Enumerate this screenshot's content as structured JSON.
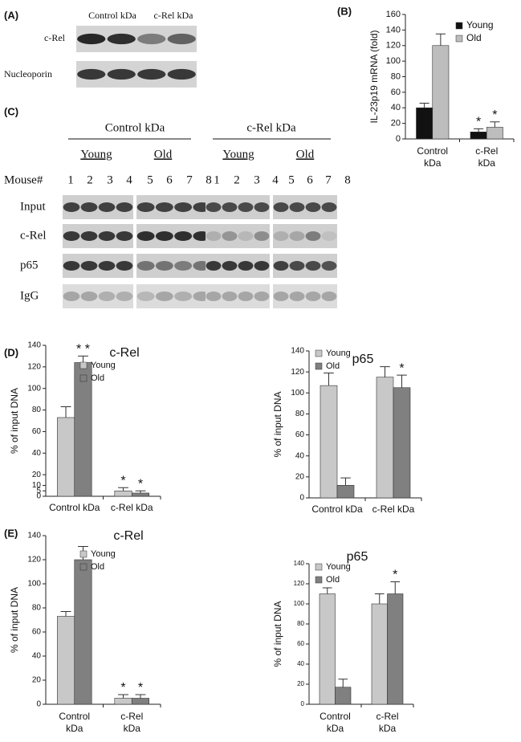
{
  "blots": {
    "A": {
      "panel": "(A)",
      "columns": [
        "Control kDa",
        "c-Rel kDa"
      ],
      "rows": [
        "c-Rel",
        "Nucleoporin"
      ]
    },
    "C": {
      "panel": "(C)",
      "groups": [
        "Control kDa",
        "c-Rel kDa"
      ],
      "subgroups": [
        "Young",
        "Old",
        "Young",
        "Old"
      ],
      "mouse_label": "Mouse#",
      "mice": [
        "1",
        "2",
        "3",
        "4",
        "5",
        "6",
        "7",
        "8"
      ],
      "rows": [
        "Input",
        "c-Rel",
        "p65",
        "IgG"
      ]
    }
  },
  "chart_data": [
    {
      "type": "bar",
      "panel": "(B)",
      "ylabel": "IL-23p19 mRNA (fold)",
      "categories": [
        [
          "Control",
          "kDa"
        ],
        [
          "c-Rel",
          "kDa"
        ]
      ],
      "series": [
        {
          "name": "Young",
          "color": "#111111",
          "values": [
            40,
            9
          ],
          "errors": [
            6,
            4
          ],
          "significance": [
            null,
            "*"
          ]
        },
        {
          "name": "Old",
          "color": "#bdbdbd",
          "values": [
            120,
            15
          ],
          "errors": [
            15,
            7
          ],
          "significance": [
            null,
            "*"
          ]
        }
      ],
      "ylim": [
        0,
        160
      ],
      "yticks": [
        0,
        20,
        40,
        60,
        80,
        100,
        120,
        140,
        160
      ],
      "legend": "top-right"
    },
    {
      "type": "bar",
      "panel": "(D)",
      "title": "c-Rel",
      "ylabel": "% of input DNA",
      "categories": [
        "Control kDa",
        "c-Rel kDa"
      ],
      "series": [
        {
          "name": "Young",
          "color": "#c8c8c8",
          "values": [
            73,
            5
          ],
          "errors": [
            10,
            3
          ],
          "significance": [
            null,
            "*"
          ]
        },
        {
          "name": "Old",
          "color": "#808080",
          "values": [
            124,
            3
          ],
          "errors": [
            6,
            2
          ],
          "significance": [
            "* *",
            "*"
          ]
        }
      ],
      "ylim": [
        0,
        140
      ],
      "yticks": [
        0,
        5,
        10,
        20,
        40,
        60,
        80,
        100,
        120,
        140
      ],
      "legend": "top-center"
    },
    {
      "type": "bar",
      "title": "p65",
      "ylabel": "% of input DNA",
      "categories": [
        "Control kDa",
        "c-Rel kDa"
      ],
      "series": [
        {
          "name": "Young",
          "color": "#c8c8c8",
          "values": [
            107,
            115
          ],
          "errors": [
            12,
            10
          ],
          "significance": [
            null,
            null
          ]
        },
        {
          "name": "Old",
          "color": "#808080",
          "values": [
            12,
            105
          ],
          "errors": [
            7,
            12
          ],
          "significance": [
            null,
            "*"
          ]
        }
      ],
      "ylim": [
        0,
        140
      ],
      "yticks": [
        0,
        20,
        40,
        60,
        80,
        100,
        120,
        140
      ],
      "legend": "top-left"
    },
    {
      "type": "bar",
      "panel": "(E)",
      "title": "c-Rel",
      "ylabel": "% of input DNA",
      "categories": [
        [
          "Control",
          "kDa"
        ],
        [
          "c-Rel",
          "kDa"
        ]
      ],
      "series": [
        {
          "name": "Young",
          "color": "#c8c8c8",
          "values": [
            73,
            5
          ],
          "errors": [
            4,
            3
          ],
          "significance": [
            null,
            "*"
          ]
        },
        {
          "name": "Old",
          "color": "#808080",
          "values": [
            120,
            5
          ],
          "errors": [
            11,
            3
          ],
          "significance": [
            null,
            "*"
          ]
        }
      ],
      "ylim": [
        0,
        140
      ],
      "yticks": [
        0,
        20,
        40,
        60,
        80,
        100,
        120,
        140
      ],
      "legend": "top-center"
    },
    {
      "type": "bar",
      "title": "p65",
      "ylabel": "% of input DNA",
      "categories": [
        [
          "Control",
          "kDa"
        ],
        [
          "c-Rel",
          "kDa"
        ]
      ],
      "series": [
        {
          "name": "Young",
          "color": "#c8c8c8",
          "values": [
            110,
            100
          ],
          "errors": [
            6,
            10
          ],
          "significance": [
            null,
            null
          ]
        },
        {
          "name": "Old",
          "color": "#808080",
          "values": [
            17,
            110
          ],
          "errors": [
            8,
            12
          ],
          "significance": [
            null,
            "*"
          ]
        }
      ],
      "ylim": [
        0,
        140
      ],
      "yticks": [
        0,
        20,
        40,
        60,
        80,
        100,
        120,
        140
      ],
      "legend": "top-left"
    }
  ]
}
